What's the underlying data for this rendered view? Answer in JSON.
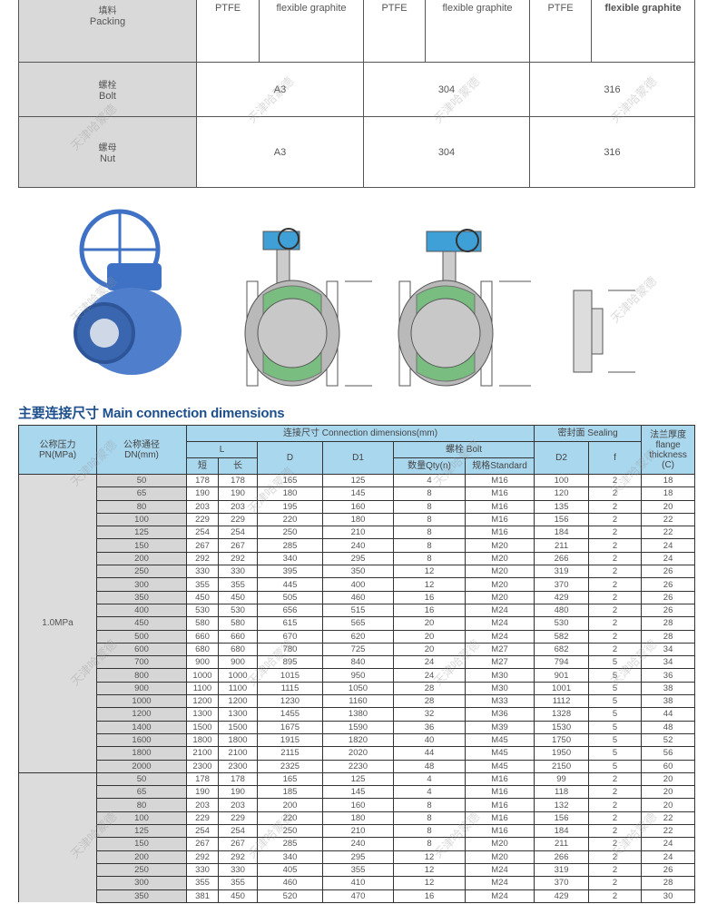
{
  "materials": {
    "rows": [
      {
        "cn": "填料",
        "en": "Packing",
        "cells": [
          "PTFE",
          "flexible graphite",
          "PTFE",
          "flexible graphite",
          "PTFE",
          "flexible graphite"
        ]
      },
      {
        "cn": "螺栓",
        "en": "Bolt",
        "cells": [
          "A3",
          "304",
          "316"
        ]
      },
      {
        "cn": "螺母",
        "en": "Nut",
        "cells": [
          "A3",
          "304",
          "316"
        ]
      }
    ]
  },
  "section_title": "主要连接尺寸 Main connection dimensions",
  "header": {
    "pn_cn": "公称压力",
    "pn_en": "PN(MPa)",
    "dn_cn": "公称通径",
    "dn_en": "DN(mm)",
    "conn": "连接尺寸 Connection dimensions(mm)",
    "L": "L",
    "short": "短",
    "long": "长",
    "D": "D",
    "D1": "D1",
    "bolt": "螺栓 Bolt",
    "qty": "数量Qty(n)",
    "std": "规格Standard",
    "sealing": "密封面 Sealing",
    "D2": "D2",
    "f": "f",
    "flange_cn": "法兰厚度",
    "flange_en": "flange thickness",
    "flange_c": "(C)"
  },
  "groups": [
    {
      "pn": "1.0MPa",
      "rows": [
        [
          "50",
          "178",
          "178",
          "165",
          "125",
          "4",
          "M16",
          "100",
          "2",
          "18"
        ],
        [
          "65",
          "190",
          "190",
          "180",
          "145",
          "8",
          "M16",
          "120",
          "2",
          "18"
        ],
        [
          "80",
          "203",
          "203",
          "195",
          "160",
          "8",
          "M16",
          "135",
          "2",
          "20"
        ],
        [
          "100",
          "229",
          "229",
          "220",
          "180",
          "8",
          "M16",
          "156",
          "2",
          "22"
        ],
        [
          "125",
          "254",
          "254",
          "250",
          "210",
          "8",
          "M16",
          "184",
          "2",
          "22"
        ],
        [
          "150",
          "267",
          "267",
          "285",
          "240",
          "8",
          "M20",
          "211",
          "2",
          "24"
        ],
        [
          "200",
          "292",
          "292",
          "340",
          "295",
          "8",
          "M20",
          "266",
          "2",
          "24"
        ],
        [
          "250",
          "330",
          "330",
          "395",
          "350",
          "12",
          "M20",
          "319",
          "2",
          "26"
        ],
        [
          "300",
          "355",
          "355",
          "445",
          "400",
          "12",
          "M20",
          "370",
          "2",
          "26"
        ],
        [
          "350",
          "450",
          "450",
          "505",
          "460",
          "16",
          "M20",
          "429",
          "2",
          "26"
        ],
        [
          "400",
          "530",
          "530",
          "656",
          "515",
          "16",
          "M24",
          "480",
          "2",
          "26"
        ],
        [
          "450",
          "580",
          "580",
          "615",
          "565",
          "20",
          "M24",
          "530",
          "2",
          "28"
        ],
        [
          "500",
          "660",
          "660",
          "670",
          "620",
          "20",
          "M24",
          "582",
          "2",
          "28"
        ],
        [
          "600",
          "680",
          "680",
          "780",
          "725",
          "20",
          "M27",
          "682",
          "2",
          "34"
        ],
        [
          "700",
          "900",
          "900",
          "895",
          "840",
          "24",
          "M27",
          "794",
          "5",
          "34"
        ],
        [
          "800",
          "1000",
          "1000",
          "1015",
          "950",
          "24",
          "M30",
          "901",
          "5",
          "36"
        ],
        [
          "900",
          "1100",
          "1100",
          "1115",
          "1050",
          "28",
          "M30",
          "1001",
          "5",
          "38"
        ],
        [
          "1000",
          "1200",
          "1200",
          "1230",
          "1160",
          "28",
          "M33",
          "1112",
          "5",
          "38"
        ],
        [
          "1200",
          "1300",
          "1300",
          "1455",
          "1380",
          "32",
          "M36",
          "1328",
          "5",
          "44"
        ],
        [
          "1400",
          "1500",
          "1500",
          "1675",
          "1590",
          "36",
          "M39",
          "1530",
          "5",
          "48"
        ],
        [
          "1600",
          "1800",
          "1800",
          "1915",
          "1820",
          "40",
          "M45",
          "1750",
          "5",
          "52"
        ],
        [
          "1800",
          "2100",
          "2100",
          "2115",
          "2020",
          "44",
          "M45",
          "1950",
          "5",
          "56"
        ],
        [
          "2000",
          "2300",
          "2300",
          "2325",
          "2230",
          "48",
          "M45",
          "2150",
          "5",
          "60"
        ]
      ]
    },
    {
      "pn": "",
      "rows": [
        [
          "50",
          "178",
          "178",
          "165",
          "125",
          "4",
          "M16",
          "99",
          "2",
          "20"
        ],
        [
          "65",
          "190",
          "190",
          "185",
          "145",
          "4",
          "M16",
          "118",
          "2",
          "20"
        ],
        [
          "80",
          "203",
          "203",
          "200",
          "160",
          "8",
          "M16",
          "132",
          "2",
          "20"
        ],
        [
          "100",
          "229",
          "229",
          "220",
          "180",
          "8",
          "M16",
          "156",
          "2",
          "22"
        ],
        [
          "125",
          "254",
          "254",
          "250",
          "210",
          "8",
          "M16",
          "184",
          "2",
          "22"
        ],
        [
          "150",
          "267",
          "267",
          "285",
          "240",
          "8",
          "M20",
          "211",
          "2",
          "24"
        ],
        [
          "200",
          "292",
          "292",
          "340",
          "295",
          "12",
          "M20",
          "266",
          "2",
          "24"
        ],
        [
          "250",
          "330",
          "330",
          "405",
          "355",
          "12",
          "M24",
          "319",
          "2",
          "26"
        ],
        [
          "300",
          "355",
          "355",
          "460",
          "410",
          "12",
          "M24",
          "370",
          "2",
          "28"
        ],
        [
          "350",
          "381",
          "450",
          "520",
          "470",
          "16",
          "M24",
          "429",
          "2",
          "30"
        ]
      ]
    }
  ],
  "watermark": "天津哈蒙德",
  "colors": {
    "header_bg": "#a9d7ee",
    "title": "#1d4f8c",
    "valve_blue": "#3f72c4",
    "seat_green": "#5fbf6a"
  }
}
